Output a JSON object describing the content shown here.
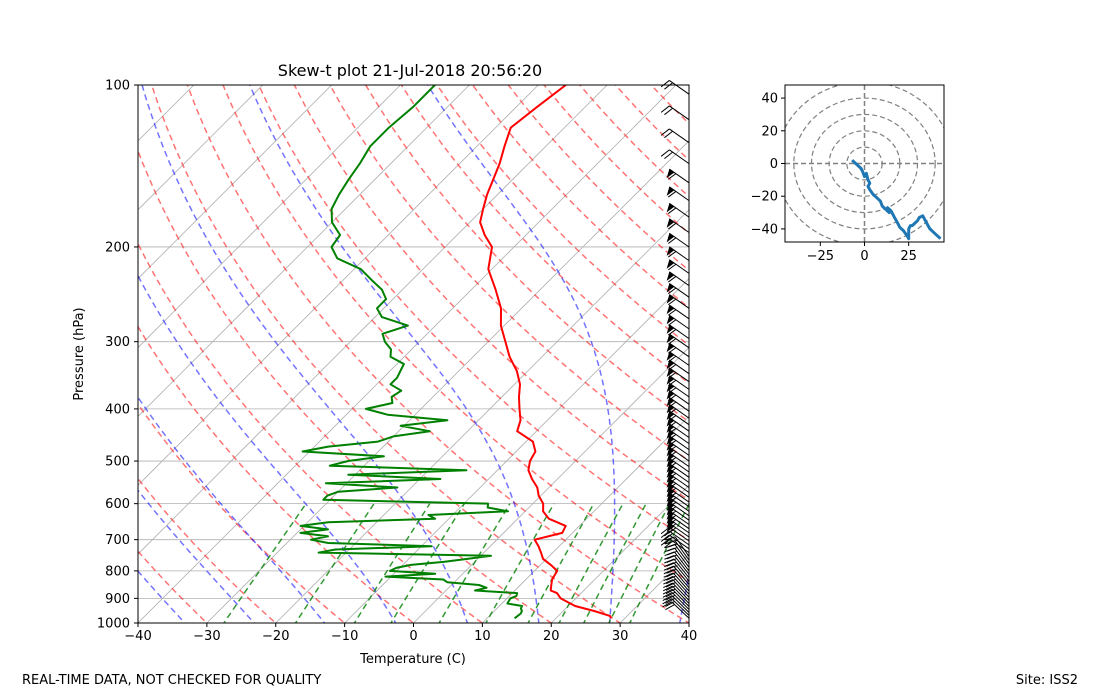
{
  "chart_data": [
    {
      "type": "line",
      "subtype": "skew-t",
      "title": "Skew-t plot 21-Jul-2018 20:56:20",
      "xlabel": "Temperature (C)",
      "ylabel": "Pressure (hPa)",
      "xlim": [
        -40,
        40
      ],
      "ylim": [
        1000,
        100
      ],
      "y_scale": "log",
      "x_ticks": [
        -40,
        -30,
        -20,
        -10,
        0,
        10,
        20,
        30,
        40
      ],
      "y_ticks": [
        100,
        200,
        300,
        400,
        500,
        600,
        700,
        800,
        900,
        1000
      ],
      "grid": true,
      "series": [
        {
          "role": "temperature",
          "color": "#ff0000",
          "p": [
            980,
            970,
            950,
            930,
            900,
            880,
            870,
            850,
            830,
            800,
            780,
            760,
            740,
            720,
            700,
            680,
            660,
            640,
            620,
            600,
            580,
            560,
            540,
            520,
            500,
            480,
            460,
            440,
            420,
            400,
            380,
            360,
            340,
            320,
            300,
            280,
            260,
            240,
            220,
            200,
            190,
            180,
            170,
            160,
            150,
            140,
            130,
            120,
            110,
            100
          ],
          "t": [
            28,
            27.5,
            24.5,
            21,
            17.8,
            16.5,
            15.2,
            14.5,
            13.8,
            13.3,
            11.5,
            9.5,
            8.3,
            7,
            5.5,
            8.5,
            8,
            4.5,
            2.6,
            1.5,
            -0.3,
            -1.7,
            -3.7,
            -5.5,
            -6.6,
            -7.2,
            -9,
            -12.8,
            -13.9,
            -15.7,
            -17.5,
            -19.2,
            -21.6,
            -24.7,
            -27.5,
            -30.5,
            -33,
            -36.5,
            -40.5,
            -43.2,
            -46,
            -48.5,
            -50,
            -51.5,
            -52.8,
            -54.2,
            -56,
            -57.8,
            -57,
            -56
          ]
        },
        {
          "role": "dewpoint",
          "color": "#008000",
          "p": [
            980,
            960,
            950,
            940,
            930,
            920,
            900,
            890,
            880,
            870,
            860,
            850,
            840,
            830,
            820,
            810,
            800,
            790,
            780,
            770,
            760,
            750,
            740,
            730,
            720,
            710,
            700,
            690,
            680,
            670,
            660,
            650,
            640,
            630,
            620,
            610,
            600,
            590,
            580,
            570,
            560,
            550,
            540,
            530,
            520,
            510,
            500,
            490,
            480,
            470,
            460,
            450,
            440,
            430,
            420,
            410,
            400,
            390,
            380,
            370,
            360,
            350,
            340,
            330,
            320,
            310,
            300,
            290,
            280,
            270,
            260,
            250,
            240,
            230,
            220,
            210,
            200,
            190,
            180,
            170,
            160,
            150,
            140,
            130,
            120,
            110,
            100
          ],
          "t": [
            14,
            14.2,
            14,
            13.5,
            13.3,
            10.8,
            10.5,
            11,
            10.7,
            4.2,
            5.5,
            4,
            -1,
            -2,
            -10.8,
            -4,
            -11,
            -10.5,
            -8.8,
            -4.5,
            -1.5,
            1.5,
            -24,
            -22,
            -8.5,
            -24,
            -27,
            -25,
            -29.5,
            -26,
            -30.5,
            -27,
            -12,
            -13.5,
            -2.5,
            -6,
            -6.5,
            -31,
            -31,
            -30,
            -22,
            -33,
            -17,
            -31,
            -14.5,
            -35,
            -33,
            -28.5,
            -41,
            -38,
            -31.5,
            -30,
            -25.5,
            -30.5,
            -24.5,
            -34,
            -38,
            -35,
            -36,
            -35.5,
            -38,
            -38,
            -38.5,
            -39,
            -42,
            -43,
            -45,
            -46.5,
            -44,
            -49,
            -51,
            -51,
            -53,
            -56,
            -59,
            -64,
            -66.5,
            -67,
            -70,
            -72,
            -73,
            -73.8,
            -74.5,
            -75.5,
            -75.5,
            -75,
            -75
          ]
        }
      ],
      "reference_lines": {
        "dry_adiabats": {
          "color": "#ff0000",
          "style": "dashed"
        },
        "moist_adiabats": {
          "color": "#0000ff",
          "style": "dashed"
        },
        "mixing_ratio_lines": {
          "color": "#008000",
          "style": "dashed"
        },
        "isotherms": {
          "color": "#999999",
          "style": "solid"
        }
      },
      "wind_barbs": {
        "position": "right",
        "color": "#000000"
      }
    },
    {
      "type": "line",
      "subtype": "hodograph",
      "xlim": [
        -45,
        45
      ],
      "ylim": [
        -48,
        48
      ],
      "x_ticks": [
        -25,
        0,
        25
      ],
      "y_ticks": [
        -40,
        -20,
        0,
        20,
        40
      ],
      "range_rings": [
        10,
        20,
        30,
        40,
        50
      ],
      "series": [
        {
          "color": "#1f77b4",
          "u": [
            -7,
            -5,
            -2,
            -1,
            0,
            1,
            2,
            3,
            2,
            3,
            5,
            7,
            9,
            10,
            12,
            14,
            13,
            15,
            16,
            17,
            18,
            19,
            20,
            22,
            24,
            25,
            25,
            26,
            27,
            28,
            30,
            31,
            33,
            35,
            37,
            40,
            43
          ],
          "v": [
            2,
            0,
            -3,
            -5,
            -8,
            -6,
            -10,
            -12,
            -14,
            -16,
            -19,
            -21,
            -23,
            -26,
            -28,
            -30,
            -27,
            -29,
            -31,
            -33,
            -35,
            -37,
            -39,
            -41,
            -44,
            -46,
            -40,
            -38,
            -38,
            -37,
            -35,
            -33,
            -32,
            -36,
            -40,
            -43,
            -46
          ]
        }
      ]
    }
  ],
  "footer": {
    "left": "REAL-TIME DATA, NOT CHECKED FOR QUALITY",
    "right": "Site: ISS2"
  }
}
